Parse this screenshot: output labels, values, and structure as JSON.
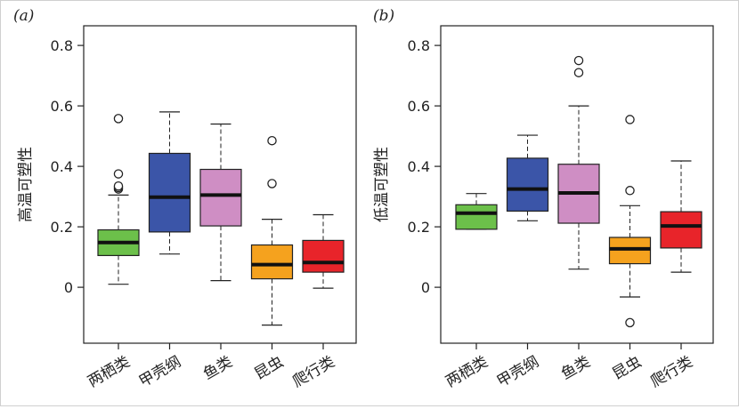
{
  "chart_data": [
    {
      "type": "boxplot",
      "panel_label": "(a)",
      "ylabel": "高温可塑性",
      "yticks": [
        "0",
        "0.2",
        "0.4",
        "0.6",
        "0.8"
      ],
      "ylim": [
        -0.185,
        0.865
      ],
      "boxes": [
        {
          "category": "两栖类",
          "color": "#6cc04a",
          "whisker_low": 0.01,
          "q1": 0.105,
          "median": 0.148,
          "q3": 0.19,
          "whisker_high": 0.305,
          "outliers": [
            0.325,
            0.33,
            0.335,
            0.375,
            0.558
          ]
        },
        {
          "category": "甲壳纲",
          "color": "#3b55a8",
          "whisker_low": 0.11,
          "q1": 0.183,
          "median": 0.298,
          "q3": 0.443,
          "whisker_high": 0.58,
          "outliers": []
        },
        {
          "category": "鱼类",
          "color": "#cf8ec4",
          "whisker_low": 0.022,
          "q1": 0.203,
          "median": 0.305,
          "q3": 0.39,
          "whisker_high": 0.54,
          "outliers": []
        },
        {
          "category": "昆虫",
          "color": "#f5a21e",
          "whisker_low": -0.125,
          "q1": 0.028,
          "median": 0.075,
          "q3": 0.14,
          "whisker_high": 0.225,
          "outliers": [
            0.343,
            0.485
          ]
        },
        {
          "category": "爬行类",
          "color": "#e8242a",
          "whisker_low": -0.003,
          "q1": 0.05,
          "median": 0.082,
          "q3": 0.155,
          "whisker_high": 0.24,
          "outliers": []
        }
      ]
    },
    {
      "type": "boxplot",
      "panel_label": "(b)",
      "ylabel": "低温可塑性",
      "yticks": [
        "0",
        "0.2",
        "0.4",
        "0.6",
        "0.8"
      ],
      "ylim": [
        -0.185,
        0.865
      ],
      "boxes": [
        {
          "category": "两栖类",
          "color": "#6cc04a",
          "whisker_low": 0.192,
          "q1": 0.192,
          "median": 0.245,
          "q3": 0.273,
          "whisker_high": 0.31,
          "outliers": []
        },
        {
          "category": "甲壳纲",
          "color": "#3b55a8",
          "whisker_low": 0.22,
          "q1": 0.252,
          "median": 0.325,
          "q3": 0.427,
          "whisker_high": 0.503,
          "outliers": []
        },
        {
          "category": "鱼类",
          "color": "#cf8ec4",
          "whisker_low": 0.06,
          "q1": 0.212,
          "median": 0.312,
          "q3": 0.407,
          "whisker_high": 0.6,
          "outliers": [
            0.71,
            0.75
          ]
        },
        {
          "category": "昆虫",
          "color": "#f5a21e",
          "whisker_low": -0.032,
          "q1": 0.078,
          "median": 0.127,
          "q3": 0.165,
          "whisker_high": 0.27,
          "outliers": [
            -0.117,
            0.32,
            0.555
          ]
        },
        {
          "category": "爬行类",
          "color": "#e8242a",
          "whisker_low": 0.05,
          "q1": 0.13,
          "median": 0.203,
          "q3": 0.25,
          "whisker_high": 0.418,
          "outliers": []
        }
      ]
    }
  ]
}
